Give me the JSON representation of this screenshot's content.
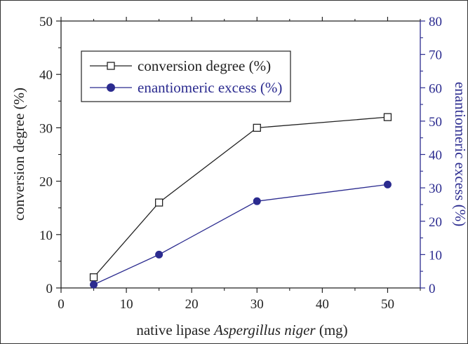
{
  "chart_data": {
    "type": "line",
    "title": "",
    "xlabel_prefix": "native lipase ",
    "xlabel_italic": "Aspergillus niger",
    "xlabel_suffix": " (mg)",
    "ylabel_left": "conversion degree (%)",
    "ylabel_right": "enantiomeric excess (%)",
    "xlim": [
      0,
      55
    ],
    "ylim_left": [
      0,
      50
    ],
    "ylim_right": [
      0,
      80
    ],
    "x_ticks": [
      0,
      10,
      20,
      30,
      40,
      50
    ],
    "y_ticks_left": [
      0,
      10,
      20,
      30,
      40,
      50
    ],
    "y_ticks_right": [
      0,
      10,
      20,
      30,
      40,
      50,
      60,
      70,
      80
    ],
    "grid": false,
    "legend_position": "top-left",
    "series": [
      {
        "name": "conversion degree (%)",
        "axis": "left",
        "marker": "open-square",
        "color": "#222222",
        "x": [
          5,
          15,
          30,
          50
        ],
        "y": [
          2,
          16,
          30,
          32
        ]
      },
      {
        "name": "enantiomeric excess (%)",
        "axis": "right",
        "marker": "filled-circle",
        "color": "#2b2b8f",
        "x": [
          5,
          15,
          30,
          50
        ],
        "y": [
          1,
          10,
          26,
          31
        ]
      }
    ]
  }
}
